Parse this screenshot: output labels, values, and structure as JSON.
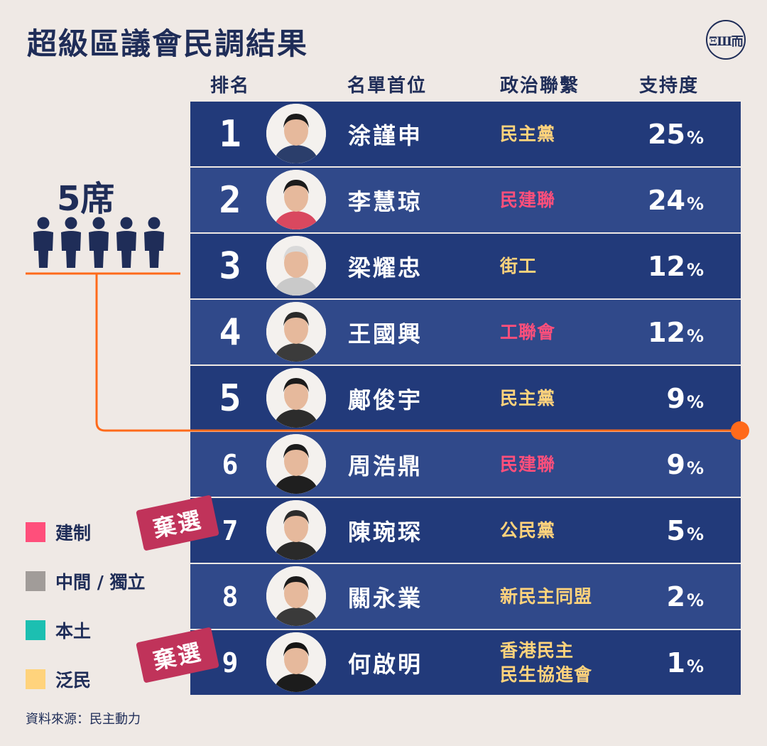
{
  "title": "超級區議會民調結果",
  "logo_text": "ΞШ而",
  "headers": {
    "rank": "排名",
    "name": "名單首位",
    "party": "政治聯繫",
    "support": "支持度"
  },
  "seats_label": "5席",
  "seats_count": 5,
  "seat_cutoff_rank": 5,
  "colors": {
    "establishment": "#ff4f7b",
    "centrist": "#a19c99",
    "localist": "#1cbfb1",
    "democrat": "#ffd37c",
    "cutoff_line": "#ff6a1a"
  },
  "legend": [
    {
      "label": "建制",
      "color": "#ff4f7b"
    },
    {
      "label": "中間 / 獨立",
      "color": "#a19c99"
    },
    {
      "label": "本土",
      "color": "#1cbfb1"
    },
    {
      "label": "泛民",
      "color": "#ffd37c"
    }
  ],
  "stamp_label": "棄選",
  "source": "資料來源：民主動力",
  "chart_data": {
    "type": "table",
    "columns": [
      "排名",
      "名單首位",
      "政治聯繫",
      "支持度"
    ],
    "rows": [
      {
        "rank": "1",
        "name": "涂謹申",
        "party": [
          "民主黨"
        ],
        "camp": "democrat",
        "support": 25,
        "withdrawn": false
      },
      {
        "rank": "2",
        "name": "李慧琼",
        "party": [
          "民建聯"
        ],
        "camp": "establishment",
        "support": 24,
        "withdrawn": false
      },
      {
        "rank": "3",
        "name": "梁耀忠",
        "party": [
          "街工"
        ],
        "camp": "democrat",
        "support": 12,
        "withdrawn": false
      },
      {
        "rank": "4",
        "name": "王國興",
        "party": [
          "工聯會"
        ],
        "camp": "establishment",
        "support": 12,
        "withdrawn": false
      },
      {
        "rank": "5",
        "name": "鄺俊宇",
        "party": [
          "民主黨"
        ],
        "camp": "democrat",
        "support": 9,
        "withdrawn": false
      },
      {
        "rank": "6",
        "name": "周浩鼎",
        "party": [
          "民建聯"
        ],
        "camp": "establishment",
        "support": 9,
        "withdrawn": false
      },
      {
        "rank": "7",
        "name": "陳琬琛",
        "party": [
          "公民黨"
        ],
        "camp": "democrat",
        "support": 5,
        "withdrawn": true
      },
      {
        "rank": "8",
        "name": "關永業",
        "party": [
          "新民主同盟"
        ],
        "camp": "democrat",
        "support": 2,
        "withdrawn": false
      },
      {
        "rank": "9",
        "name": "何啟明",
        "party": [
          "香港民主",
          "民生協進會"
        ],
        "camp": "democrat",
        "support": 1,
        "withdrawn": true
      }
    ],
    "pct_symbol": "%"
  }
}
